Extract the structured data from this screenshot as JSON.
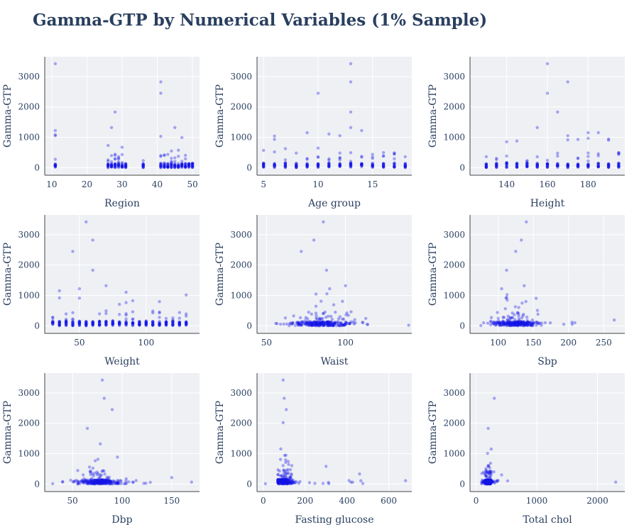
{
  "title": "Gamma-GTP by Numerical Variables (1% Sample)",
  "style": {
    "plot_bg": "#eef0f4",
    "grid": "#ffffff",
    "point_color": "#1414e6",
    "text_color": "#2a3f5f",
    "axis_line": "#444444"
  },
  "chart_data": [
    {
      "type": "scatter",
      "xlabel": "Region",
      "ylabel": "Gamma-GTP",
      "xlim": [
        8,
        52
      ],
      "ylim": [
        -250,
        3650
      ],
      "xticks": [
        10,
        20,
        30,
        40,
        50
      ],
      "yticks": [
        0,
        1000,
        2000,
        3000
      ],
      "grid": true,
      "x_discrete": [
        11,
        26,
        27,
        28,
        29,
        30,
        31,
        36,
        41,
        42,
        43,
        44,
        45,
        46,
        47,
        48,
        49,
        50
      ],
      "y_typical_max": 450,
      "outliers": [
        [
          11,
          3420
        ],
        [
          11,
          1220
        ],
        [
          11,
          1050
        ],
        [
          28,
          1830
        ],
        [
          41,
          2820
        ],
        [
          41,
          2450
        ],
        [
          45,
          1320
        ],
        [
          27,
          1320
        ]
      ]
    },
    {
      "type": "scatter",
      "xlabel": "Age group",
      "ylabel": "Gamma-GTP",
      "xlim": [
        4.4,
        18.6
      ],
      "ylim": [
        -250,
        3650
      ],
      "xticks": [
        5,
        10,
        15
      ],
      "yticks": [
        0,
        1000,
        2000,
        3000
      ],
      "grid": true,
      "x_discrete": [
        5,
        6,
        7,
        8,
        9,
        10,
        11,
        12,
        13,
        14,
        15,
        16,
        17,
        18
      ],
      "y_typical_max": 500,
      "outliers": [
        [
          13,
          3420
        ],
        [
          13,
          2820
        ],
        [
          10,
          2450
        ],
        [
          13,
          1830
        ],
        [
          14,
          1220
        ],
        [
          13,
          1320
        ],
        [
          9,
          1150
        ],
        [
          12,
          1050
        ]
      ]
    },
    {
      "type": "scatter",
      "xlabel": "Height",
      "ylabel": "Gamma-GTP",
      "xlim": [
        122,
        198
      ],
      "ylim": [
        -250,
        3650
      ],
      "xticks": [
        140,
        160,
        180
      ],
      "yticks": [
        0,
        1000,
        2000,
        3000
      ],
      "grid": true,
      "x_discrete": [
        130,
        135,
        140,
        145,
        150,
        155,
        160,
        165,
        170,
        175,
        180,
        185,
        190,
        195
      ],
      "y_typical_max": 500,
      "outliers": [
        [
          160,
          3420
        ],
        [
          170,
          2820
        ],
        [
          160,
          2450
        ],
        [
          165,
          1830
        ],
        [
          155,
          1320
        ],
        [
          180,
          1150
        ],
        [
          170,
          1050
        ],
        [
          195,
          480
        ]
      ]
    },
    {
      "type": "scatter",
      "xlabel": "Weight",
      "ylabel": "Gamma-GTP",
      "xlim": [
        24,
        140
      ],
      "ylim": [
        -250,
        3650
      ],
      "xticks": [
        50,
        100
      ],
      "yticks": [
        0,
        1000,
        2000,
        3000
      ],
      "grid": true,
      "x_discrete": [
        30,
        35,
        40,
        45,
        50,
        55,
        60,
        65,
        70,
        75,
        80,
        85,
        90,
        95,
        100,
        105,
        110,
        115,
        120,
        125,
        130
      ],
      "y_typical_max": 500,
      "outliers": [
        [
          55,
          3420
        ],
        [
          60,
          2820
        ],
        [
          45,
          2450
        ],
        [
          60,
          1830
        ],
        [
          70,
          1320
        ],
        [
          50,
          1220
        ],
        [
          35,
          920
        ]
      ]
    },
    {
      "type": "scatter",
      "xlabel": "Waist",
      "ylabel": "Gamma-GTP",
      "xlim": [
        44,
        142
      ],
      "ylim": [
        -250,
        3650
      ],
      "xticks": [
        50,
        100
      ],
      "yticks": [
        0,
        1000,
        2000,
        3000
      ],
      "grid": true,
      "x_range": [
        55,
        135
      ],
      "x_center": 85,
      "x_spread": 10,
      "y_typical_max": 450,
      "outliers": [
        [
          86,
          3420
        ],
        [
          80,
          2820
        ],
        [
          72,
          2450
        ],
        [
          88,
          1830
        ],
        [
          100,
          1320
        ],
        [
          90,
          1220
        ],
        [
          140,
          20
        ]
      ]
    },
    {
      "type": "scatter",
      "xlabel": "Sbp",
      "ylabel": "Gamma-GTP",
      "xlim": [
        60,
        280
      ],
      "ylim": [
        -250,
        3650
      ],
      "xticks": [
        100,
        150,
        200,
        250
      ],
      "yticks": [
        0,
        1000,
        2000,
        3000
      ],
      "grid": true,
      "x_range": [
        75,
        210
      ],
      "x_center": 125,
      "x_spread": 16,
      "y_typical_max": 450,
      "outliers": [
        [
          140,
          3420
        ],
        [
          133,
          2820
        ],
        [
          125,
          2450
        ],
        [
          112,
          1830
        ],
        [
          137,
          1320
        ],
        [
          105,
          1220
        ],
        [
          265,
          190
        ]
      ]
    },
    {
      "type": "scatter",
      "xlabel": "Dbp",
      "ylabel": "Gamma-GTP",
      "xlim": [
        22,
        178
      ],
      "ylim": [
        -250,
        3650
      ],
      "xticks": [
        50,
        100,
        150
      ],
      "yticks": [
        0,
        1000,
        2000,
        3000
      ],
      "grid": true,
      "x_range": [
        40,
        130
      ],
      "x_center": 77,
      "x_spread": 11,
      "y_typical_max": 450,
      "outliers": [
        [
          80,
          3420
        ],
        [
          82,
          2820
        ],
        [
          90,
          2450
        ],
        [
          65,
          1830
        ],
        [
          78,
          1320
        ],
        [
          170,
          60
        ],
        [
          150,
          210
        ],
        [
          30,
          10
        ]
      ]
    },
    {
      "type": "scatter",
      "xlabel": "Fasting glucose",
      "ylabel": "Gamma-GTP",
      "xlim": [
        -30,
        710
      ],
      "ylim": [
        -250,
        3650
      ],
      "xticks": [
        0,
        200,
        400,
        600
      ],
      "yticks": [
        0,
        1000,
        2000,
        3000
      ],
      "grid": true,
      "x_range": [
        70,
        480
      ],
      "x_center": 100,
      "x_spread": 22,
      "y_typical_max": 500,
      "outliers": [
        [
          95,
          3420
        ],
        [
          100,
          2820
        ],
        [
          110,
          2450
        ],
        [
          95,
          2020
        ],
        [
          680,
          110
        ],
        [
          460,
          330
        ],
        [
          300,
          580
        ],
        [
          10,
          10
        ]
      ]
    },
    {
      "type": "scatter",
      "xlabel": "Total chol",
      "ylabel": "Gamma-GTP",
      "xlim": [
        -100,
        2450
      ],
      "ylim": [
        -250,
        3650
      ],
      "xticks": [
        0,
        1000,
        2000
      ],
      "yticks": [
        0,
        1000,
        2000,
        3000
      ],
      "grid": true,
      "x_range": [
        90,
        400
      ],
      "x_center": 195,
      "x_spread": 38,
      "y_typical_max": 450,
      "outliers": [
        [
          300,
          2820
        ],
        [
          200,
          1830
        ],
        [
          250,
          1150
        ],
        [
          2300,
          60
        ],
        [
          520,
          100
        ],
        [
          420,
          300
        ]
      ]
    }
  ]
}
